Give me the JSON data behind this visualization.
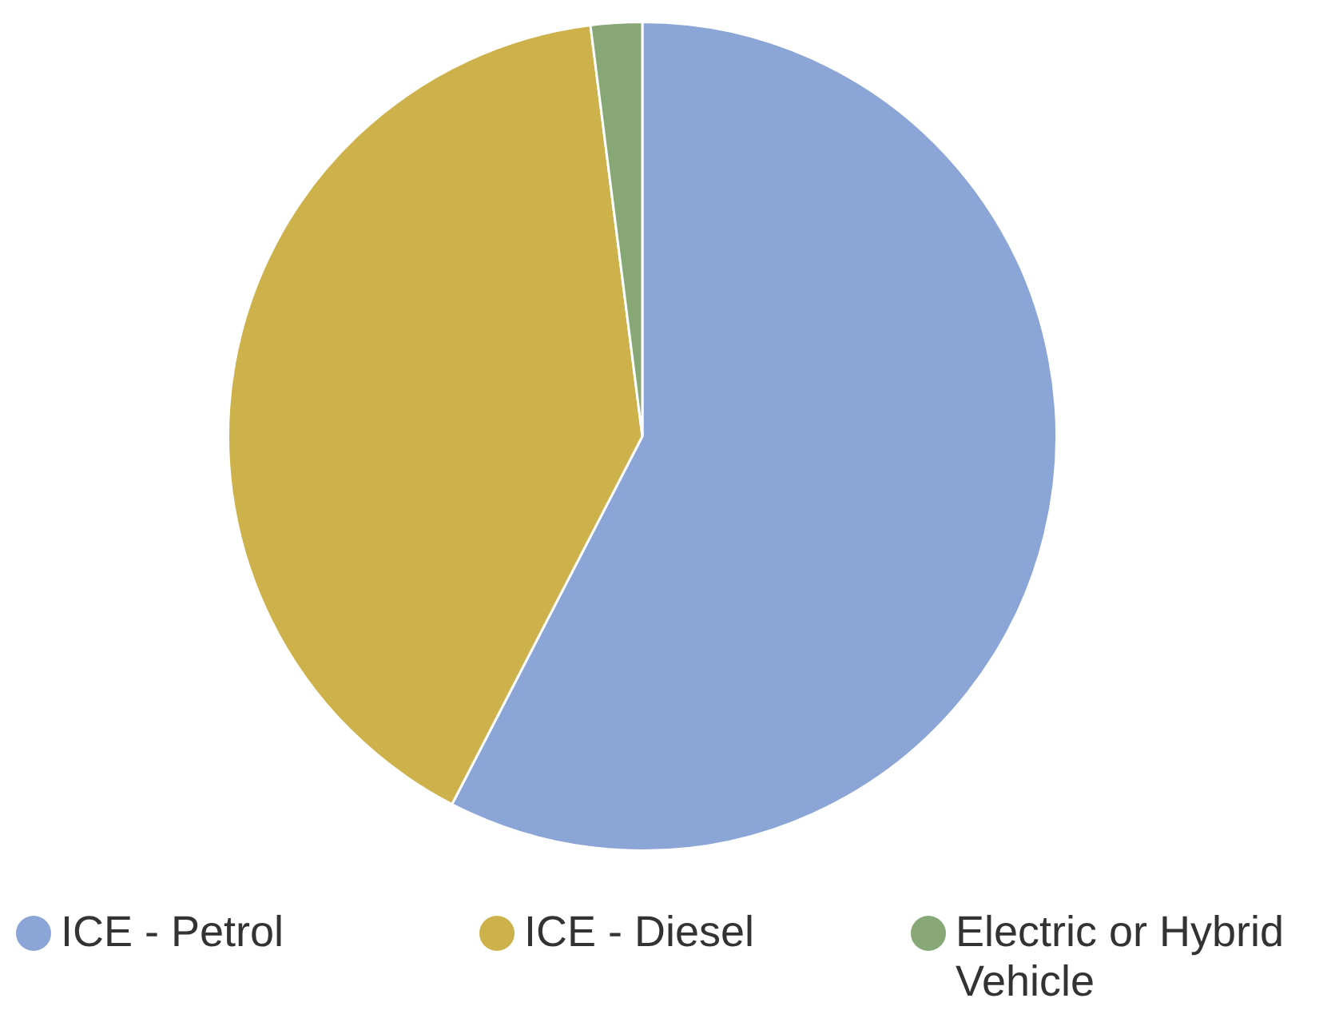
{
  "chart_data": {
    "type": "pie",
    "categories": [
      "ICE - Petrol",
      "ICE - Diesel",
      "Electric or Hybrid Vehicle"
    ],
    "values": [
      57.6,
      40.4,
      2.0
    ],
    "colors": [
      "#8ba5d6",
      "#cdb14a",
      "#87a876"
    ],
    "legend": "bottom"
  }
}
